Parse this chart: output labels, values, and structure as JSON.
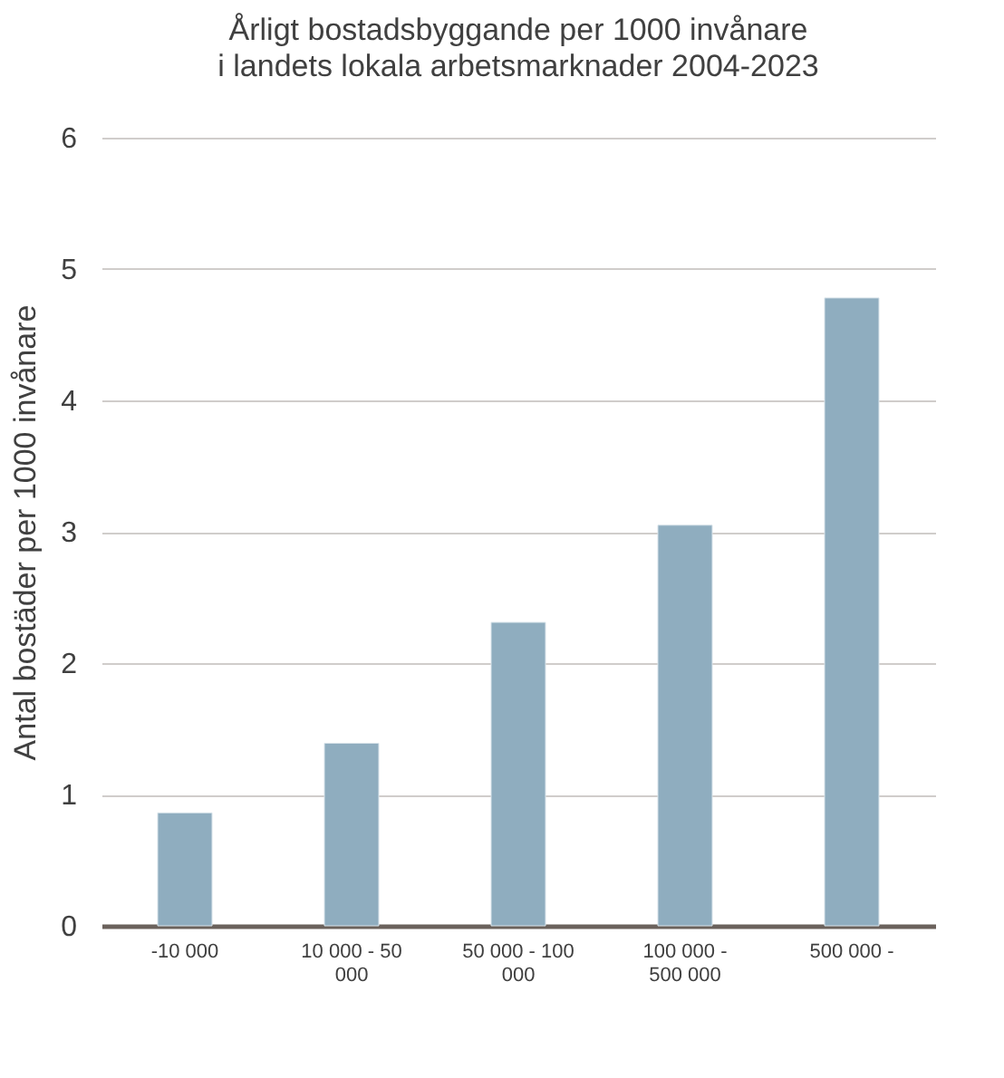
{
  "chart_data": {
    "type": "bar",
    "title": "Årligt bostadsbyggande per 1000 invånare",
    "subtitle": "i landets lokala arbetsmarknader 2004-2023",
    "ylabel": "Antal bostäder per 1000 invånare",
    "categories": [
      "-10 000",
      "10 000 - 50 000",
      "50 000 - 100 000",
      "100 000 - 500 000",
      "500 000 -"
    ],
    "values": [
      0.86,
      1.39,
      2.31,
      3.05,
      4.78
    ],
    "color": "#8fadbf",
    "ylim": [
      0,
      6
    ],
    "yticks": [
      0,
      1,
      2,
      3,
      4,
      5,
      6
    ],
    "grid": "y"
  }
}
